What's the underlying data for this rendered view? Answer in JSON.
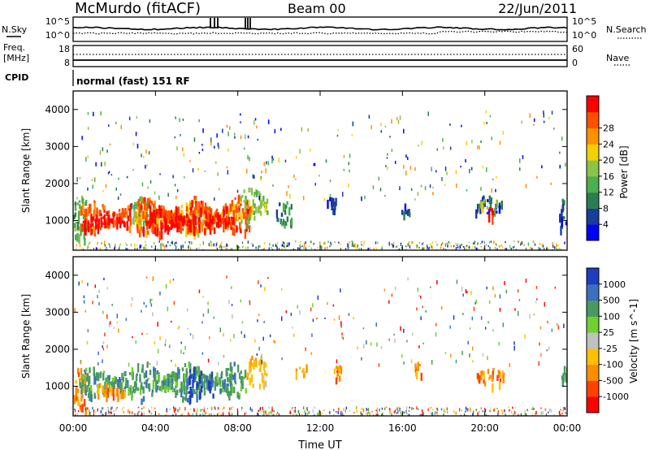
{
  "header": {
    "station": "McMurdo (fitACF)",
    "beam": "Beam 00",
    "date": "22/Jun/2011"
  },
  "noise_panel": {
    "left_label": "N.Sky",
    "right_label": "N.Search",
    "left_ticks": [
      "10^5",
      "10^0"
    ],
    "right_ticks": [
      "10^5",
      "10^0"
    ]
  },
  "freq_panel": {
    "left_label_1": "Freq.",
    "left_label_2": "[MHz]",
    "right_label": "Nave",
    "left_ticks": [
      "18",
      "8"
    ],
    "right_ticks": [
      "60",
      "0"
    ]
  },
  "cpid_panel": {
    "label": "CPID",
    "value": "normal (fast) 151 RF"
  },
  "colors": {
    "power_scale": [
      "#0000ff",
      "#1a3c9c",
      "#2a7d4f",
      "#4caf50",
      "#8bc34a",
      "#f5d000",
      "#ff9000",
      "#ff5000",
      "#ff0000"
    ],
    "velocity_scale": [
      "#ff0000",
      "#ff4000",
      "#ff8c00",
      "#ffc000",
      "#c0c0c0",
      "#70d030",
      "#4a9a60",
      "#3c6fbf",
      "#1e3dbf"
    ]
  },
  "chart_data": [
    {
      "type": "heatmap",
      "name": "power",
      "xlabel": "",
      "ylabel": "Slant Range [km]",
      "xlim": [
        0,
        24
      ],
      "ylim": [
        200,
        4500
      ],
      "y_ticks": [
        "1000",
        "2000",
        "3000",
        "4000"
      ],
      "y_tick_values": [
        1000,
        2000,
        3000,
        4000
      ],
      "colorbar": {
        "label": "Power [dB]",
        "ticks": [
          "4",
          "8",
          "12",
          "16",
          "20",
          "24",
          "28"
        ]
      },
      "patches": [
        {
          "t0": 0.0,
          "t1": 0.6,
          "r0": 400,
          "r1": 1700,
          "level": 3
        },
        {
          "t0": 0.3,
          "t1": 2.8,
          "r0": 700,
          "r1": 1600,
          "level": 7
        },
        {
          "t0": 0.4,
          "t1": 2.6,
          "r0": 850,
          "r1": 1250,
          "level": 8
        },
        {
          "t0": 2.8,
          "t1": 4.0,
          "r0": 800,
          "r1": 1700,
          "level": 3
        },
        {
          "t0": 3.0,
          "t1": 8.0,
          "r0": 700,
          "r1": 1600,
          "level": 5
        },
        {
          "t0": 3.0,
          "t1": 8.6,
          "r0": 650,
          "r1": 1700,
          "level": 7
        },
        {
          "t0": 3.5,
          "t1": 7.8,
          "r0": 700,
          "r1": 1400,
          "level": 8
        },
        {
          "t0": 8.0,
          "t1": 9.4,
          "r0": 1000,
          "r1": 1900,
          "level": 4
        },
        {
          "t0": 9.8,
          "t1": 10.6,
          "r0": 900,
          "r1": 1600,
          "level": 2
        },
        {
          "t0": 12.2,
          "t1": 12.8,
          "r0": 1300,
          "r1": 1700,
          "level": 1
        },
        {
          "t0": 15.9,
          "t1": 16.4,
          "r0": 1200,
          "r1": 1600,
          "level": 1
        },
        {
          "t0": 19.5,
          "t1": 20.8,
          "r0": 1200,
          "r1": 1700,
          "level": 1
        },
        {
          "t0": 19.7,
          "t1": 20.6,
          "r0": 1300,
          "r1": 1600,
          "level": 4
        },
        {
          "t0": 20.1,
          "t1": 20.4,
          "r0": 1100,
          "r1": 1400,
          "level": 8
        },
        {
          "t0": 23.6,
          "t1": 24.0,
          "r0": 700,
          "r1": 1700,
          "level": 1
        }
      ]
    },
    {
      "type": "heatmap",
      "name": "velocity",
      "xlabel": "Time UT",
      "ylabel": "Slant Range [km]",
      "xlim": [
        0,
        24
      ],
      "ylim": [
        200,
        4500
      ],
      "x_ticks": [
        "00:00",
        "04:00",
        "08:00",
        "12:00",
        "16:00",
        "20:00",
        "00:00"
      ],
      "x_tick_values": [
        0,
        4,
        8,
        12,
        16,
        20,
        24
      ],
      "y_ticks": [
        "1000",
        "2000",
        "3000",
        "4000"
      ],
      "y_tick_values": [
        1000,
        2000,
        3000,
        4000
      ],
      "colorbar": {
        "label": "Velocity [m s^-1]",
        "ticks": [
          "-1000",
          "-500",
          "-100",
          "-25",
          "25",
          "100",
          "500",
          "1000"
        ]
      },
      "patches": [
        {
          "t0": 0.0,
          "t1": 0.6,
          "r0": 400,
          "r1": 1700,
          "level": 2
        },
        {
          "t0": 0.3,
          "t1": 2.8,
          "r0": 700,
          "r1": 1600,
          "level": 6
        },
        {
          "t0": 1.0,
          "t1": 2.5,
          "r0": 700,
          "r1": 1100,
          "level": 2
        },
        {
          "t0": 2.8,
          "t1": 8.4,
          "r0": 650,
          "r1": 1700,
          "level": 6
        },
        {
          "t0": 5.5,
          "t1": 6.2,
          "r0": 650,
          "r1": 1600,
          "level": 8
        },
        {
          "t0": 6.5,
          "t1": 6.8,
          "r0": 700,
          "r1": 1500,
          "level": 8
        },
        {
          "t0": 8.4,
          "t1": 9.4,
          "r0": 1000,
          "r1": 1900,
          "level": 3
        },
        {
          "t0": 10.8,
          "t1": 11.4,
          "r0": 1300,
          "r1": 1600,
          "level": 2
        },
        {
          "t0": 12.5,
          "t1": 13.0,
          "r0": 1200,
          "r1": 1700,
          "level": 2
        },
        {
          "t0": 16.5,
          "t1": 16.9,
          "r0": 1300,
          "r1": 1700,
          "level": 2
        },
        {
          "t0": 19.6,
          "t1": 20.9,
          "r0": 1050,
          "r1": 1550,
          "level": 2
        },
        {
          "t0": 23.7,
          "t1": 24.0,
          "r0": 1000,
          "r1": 1700,
          "level": 6
        }
      ]
    }
  ]
}
